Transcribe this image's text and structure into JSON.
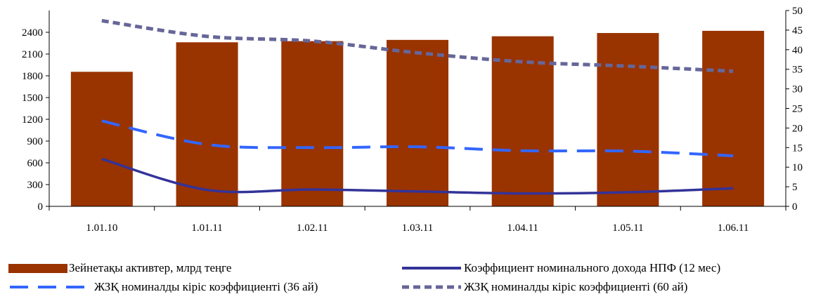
{
  "chart_data": {
    "type": "bar",
    "categories": [
      "1.01.10",
      "1.01.11",
      "1.02.11",
      "1.03.11",
      "1.04.11",
      "1.05.11",
      "1.06.11"
    ],
    "bar_series": {
      "name": "Зейнетақы активтер, млрд теңге",
      "values": [
        1855,
        2262,
        2278,
        2295,
        2345,
        2390,
        2420
      ],
      "color": "#993300",
      "axis": "left"
    },
    "line_series": [
      {
        "name": "Коэффициент номинального дохода НПФ (12 мес)",
        "values": [
          12.1,
          4.2,
          4.3,
          3.8,
          3.3,
          3.6,
          4.6
        ],
        "color": "#333399",
        "style": "solid",
        "axis": "right"
      },
      {
        "name": "ЖЗҚ номиналды кіріс коэффициенті  (36 ай)",
        "values": [
          21.8,
          15.8,
          15.0,
          15.2,
          14.2,
          14.1,
          12.9
        ],
        "color": "#3366ff",
        "style": "dash",
        "axis": "right"
      },
      {
        "name": "ЖЗҚ номиналды кіріс коэффициенті (60 ай)",
        "values": [
          47.4,
          43.4,
          42.2,
          39.2,
          36.9,
          35.8,
          34.5
        ],
        "color": "#666699",
        "style": "dot",
        "axis": "right"
      }
    ],
    "y_left": {
      "ticks": [
        0,
        300,
        600,
        900,
        1200,
        1500,
        1800,
        2100,
        2400
      ],
      "range": [
        0,
        2700
      ]
    },
    "y_right": {
      "ticks": [
        0,
        5,
        10,
        15,
        20,
        25,
        30,
        35,
        40,
        45,
        50
      ],
      "range": [
        0,
        50
      ]
    },
    "grid": false,
    "legend_position": "bottom"
  }
}
